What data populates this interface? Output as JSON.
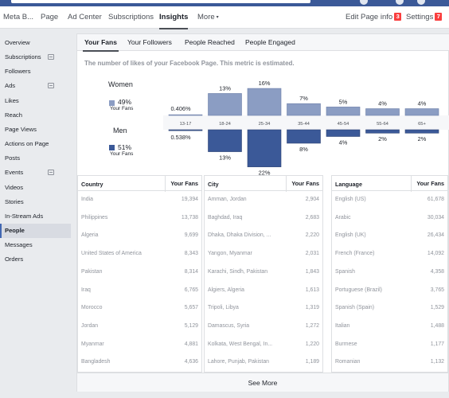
{
  "nav": {
    "items": [
      {
        "label": "Meta B...",
        "active": false
      },
      {
        "label": "Page",
        "active": false
      },
      {
        "label": "Ad Center",
        "active": false
      },
      {
        "label": "Subscriptions",
        "active": false
      },
      {
        "label": "Insights",
        "active": true
      },
      {
        "label": "More",
        "active": false
      }
    ],
    "more_caret": "▾",
    "edit_label": "Edit Page info",
    "edit_badge": "3",
    "settings_label": "Settings",
    "settings_badge": "7"
  },
  "sidebar": {
    "items": [
      {
        "label": "Overview"
      },
      {
        "label": "Subscriptions",
        "ext": true
      },
      {
        "label": "Followers"
      },
      {
        "label": "Ads",
        "ext": true
      },
      {
        "label": "Likes"
      },
      {
        "label": "Reach"
      },
      {
        "label": "Page Views"
      },
      {
        "label": "Actions on Page"
      },
      {
        "label": "Posts"
      },
      {
        "label": "Events",
        "ext": true
      },
      {
        "label": "Videos"
      },
      {
        "label": "Stories"
      },
      {
        "label": "In-Stream Ads"
      },
      {
        "label": "People",
        "active": true
      },
      {
        "label": "Messages"
      },
      {
        "label": "Orders"
      }
    ]
  },
  "tabs": [
    {
      "label": "Your Fans",
      "active": true
    },
    {
      "label": "Your Followers"
    },
    {
      "label": "People Reached"
    },
    {
      "label": "People Engaged"
    }
  ],
  "description": "The number of likes of your Facebook Page. This metric is estimated.",
  "legend": {
    "women_label": "Women",
    "women_pct": "49%",
    "women_sub": "Your Fans",
    "men_label": "Men",
    "men_pct": "51%",
    "men_sub": "Your Fans"
  },
  "colors": {
    "women": "#8b9dc3",
    "men": "#3b5998",
    "brand": "#3b5998",
    "badge": "#fa3e3e"
  },
  "chart_data": {
    "type": "bar",
    "categories": [
      "13-17",
      "18-24",
      "25-34",
      "35-44",
      "45-54",
      "55-64",
      "65+"
    ],
    "series": [
      {
        "name": "Women",
        "values": [
          0.406,
          13,
          16,
          7,
          5,
          4,
          4
        ],
        "labels": [
          "0.406%",
          "13%",
          "16%",
          "7%",
          "5%",
          "4%",
          "4%"
        ]
      },
      {
        "name": "Men",
        "values": [
          0.538,
          13,
          22,
          8,
          4,
          2,
          2
        ],
        "labels": [
          "0.538%",
          "13%",
          "22%",
          "8%",
          "4%",
          "2%",
          "2%"
        ]
      }
    ],
    "ylim": [
      0,
      22
    ]
  },
  "tables": {
    "country": {
      "header": "Country",
      "value_header": "Your Fans",
      "rows": [
        {
          "name": "India",
          "value": "19,394"
        },
        {
          "name": "Philippines",
          "value": "13,738"
        },
        {
          "name": "Algeria",
          "value": "9,699"
        },
        {
          "name": "United States of America",
          "value": "8,343"
        },
        {
          "name": "Pakistan",
          "value": "8,314"
        },
        {
          "name": "Iraq",
          "value": "6,765"
        },
        {
          "name": "Morocco",
          "value": "5,657"
        },
        {
          "name": "Jordan",
          "value": "5,129"
        },
        {
          "name": "Myanmar",
          "value": "4,881"
        },
        {
          "name": "Bangladesh",
          "value": "4,636"
        }
      ]
    },
    "city": {
      "header": "City",
      "value_header": "Your Fans",
      "rows": [
        {
          "name": "Amman, Jordan",
          "value": "2,904"
        },
        {
          "name": "Baghdad, Iraq",
          "value": "2,683"
        },
        {
          "name": "Dhaka, Dhaka Division, ...",
          "value": "2,220"
        },
        {
          "name": "Yangon, Myanmar",
          "value": "2,031"
        },
        {
          "name": "Karachi, Sindh, Pakistan",
          "value": "1,843"
        },
        {
          "name": "Algiers, Algeria",
          "value": "1,613"
        },
        {
          "name": "Tripoli, Libya",
          "value": "1,319"
        },
        {
          "name": "Damascus, Syria",
          "value": "1,272"
        },
        {
          "name": "Kolkata, West Bengal, In...",
          "value": "1,220"
        },
        {
          "name": "Lahore, Punjab, Pakistan",
          "value": "1,189"
        }
      ]
    },
    "language": {
      "header": "Language",
      "value_header": "Your Fans",
      "rows": [
        {
          "name": "English (US)",
          "value": "61,678"
        },
        {
          "name": "Arabic",
          "value": "30,034"
        },
        {
          "name": "English (UK)",
          "value": "26,434"
        },
        {
          "name": "French (France)",
          "value": "14,092"
        },
        {
          "name": "Spanish",
          "value": "4,358"
        },
        {
          "name": "Portuguese (Brazil)",
          "value": "3,765"
        },
        {
          "name": "Spanish (Spain)",
          "value": "1,529"
        },
        {
          "name": "Italian",
          "value": "1,488"
        },
        {
          "name": "Burmese",
          "value": "1,177"
        },
        {
          "name": "Romanian",
          "value": "1,132"
        }
      ]
    }
  },
  "see_more": "See More"
}
